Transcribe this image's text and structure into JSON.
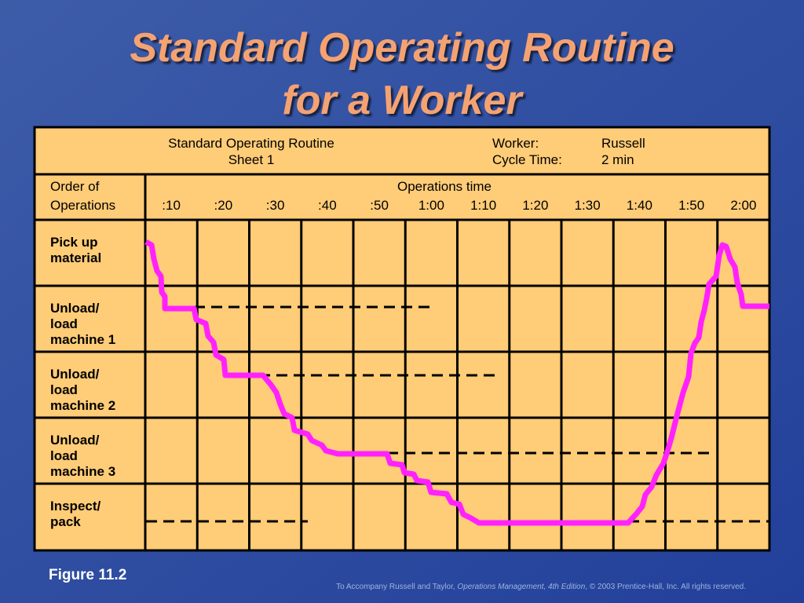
{
  "title": [
    "Standard Operating Routine",
    "for a Worker"
  ],
  "header": {
    "routine": "Standard Operating Routine",
    "sheet": "Sheet 1",
    "worker_label": "Worker:",
    "worker": "Russell",
    "cycle_label": "Cycle Time:",
    "cycle": "2 min"
  },
  "columns": {
    "order": [
      "Order of",
      "Operations"
    ],
    "ops_time": "Operations time",
    "times": [
      ":10",
      ":20",
      ":30",
      ":40",
      ":50",
      "1:00",
      "1:10",
      "1:20",
      "1:30",
      "1:40",
      "1:50",
      "2:00"
    ]
  },
  "rows": [
    [
      "Pick up",
      "material"
    ],
    [
      "Unload/",
      "load",
      "machine 1"
    ],
    [
      "Unload/",
      "load",
      "machine 2"
    ],
    [
      "Unload/",
      "load",
      "machine 3"
    ],
    [
      "Inspect/",
      "pack"
    ]
  ],
  "figure": "Figure 11.2",
  "footer": [
    "To Accompany Russell and Taylor, ",
    "Operations Management, 4th Edition",
    ", © 2003 Prentice-Hall, Inc. All rights reserved."
  ]
}
